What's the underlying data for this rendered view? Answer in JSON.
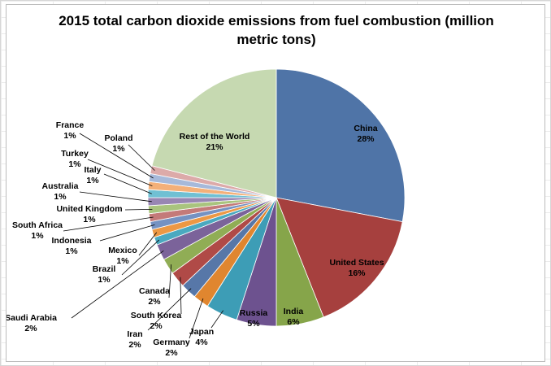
{
  "chart_data": {
    "type": "pie",
    "title_lines": [
      "2015 total carbon dioxide emissions from fuel combustion (million",
      "metric tons)"
    ],
    "slices": [
      {
        "name": "China",
        "value": 28,
        "label": "28%",
        "color": "#4f74a7"
      },
      {
        "name": "United States",
        "value": 16,
        "label": "16%",
        "color": "#a6403e"
      },
      {
        "name": "India",
        "value": 6,
        "label": "6%",
        "color": "#86a54a"
      },
      {
        "name": "Russia",
        "value": 5,
        "label": "5%",
        "color": "#6d528f"
      },
      {
        "name": "Japan",
        "value": 4,
        "label": "4%",
        "color": "#3d9db6"
      },
      {
        "name": "Germany",
        "value": 2,
        "label": "2%",
        "color": "#e0862f"
      },
      {
        "name": "Iran",
        "value": 2,
        "label": "2%",
        "color": "#5777a8"
      },
      {
        "name": "South Korea",
        "value": 2,
        "label": "2%",
        "color": "#b04a47"
      },
      {
        "name": "Canada",
        "value": 2,
        "label": "2%",
        "color": "#90ad55"
      },
      {
        "name": "Saudi Arabia",
        "value": 2,
        "label": "2%",
        "color": "#7b639a"
      },
      {
        "name": "Brazil",
        "value": 1,
        "label": "1%",
        "color": "#4aa9c0"
      },
      {
        "name": "Mexico",
        "value": 1,
        "label": "1%",
        "color": "#ec9844"
      },
      {
        "name": "Indonesia",
        "value": 1,
        "label": "1%",
        "color": "#7592c2"
      },
      {
        "name": "South Africa",
        "value": 1,
        "label": "1%",
        "color": "#c47a79"
      },
      {
        "name": "United Kingdom",
        "value": 1,
        "label": "1%",
        "color": "#a9c47e"
      },
      {
        "name": "Australia",
        "value": 1,
        "label": "1%",
        "color": "#9886b3"
      },
      {
        "name": "Italy",
        "value": 1,
        "label": "1%",
        "color": "#70c0d3"
      },
      {
        "name": "Turkey",
        "value": 1,
        "label": "1%",
        "color": "#f4b079"
      },
      {
        "name": "France",
        "value": 1,
        "label": "1%",
        "color": "#a6b9da"
      },
      {
        "name": "Poland",
        "value": 1,
        "label": "1%",
        "color": "#dcaaa9"
      },
      {
        "name": "Rest of the World",
        "value": 21,
        "label": "21%",
        "color": "#c6d9b1"
      }
    ]
  }
}
